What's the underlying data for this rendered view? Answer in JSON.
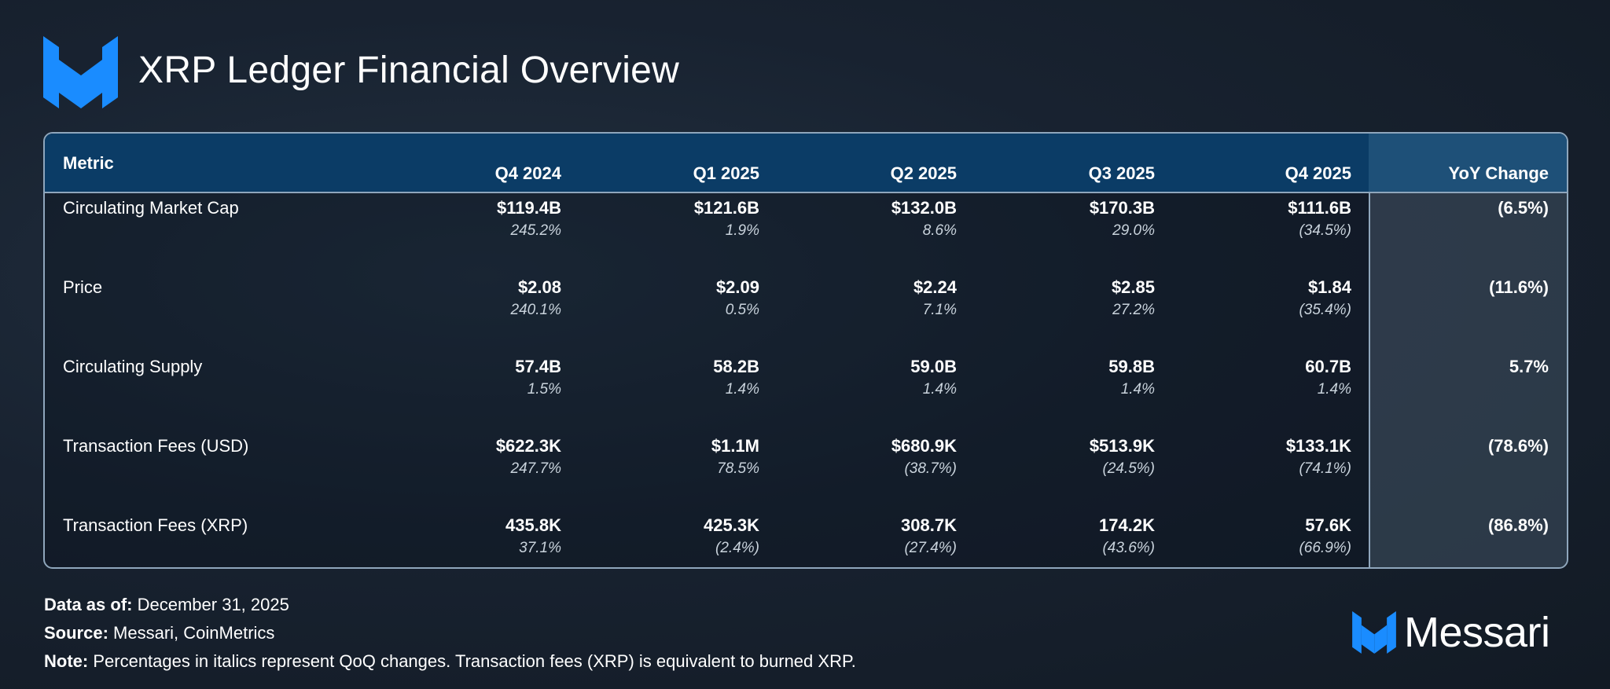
{
  "header": {
    "title": "XRP Ledger Financial Overview"
  },
  "table": {
    "columns": [
      "Metric",
      "Q4 2024",
      "Q1 2025",
      "Q2 2025",
      "Q3 2025",
      "Q4 2025",
      "YoY Change"
    ],
    "rows": [
      {
        "metric": "Circulating Market Cap",
        "cells": [
          {
            "value": "$119.4B",
            "change": "245.2%"
          },
          {
            "value": "$121.6B",
            "change": "1.9%"
          },
          {
            "value": "$132.0B",
            "change": "8.6%"
          },
          {
            "value": "$170.3B",
            "change": "29.0%"
          },
          {
            "value": "$111.6B",
            "change": "(34.5%)"
          }
        ],
        "yoy": "(6.5%)"
      },
      {
        "metric": "Price",
        "cells": [
          {
            "value": "$2.08",
            "change": "240.1%"
          },
          {
            "value": "$2.09",
            "change": "0.5%"
          },
          {
            "value": "$2.24",
            "change": "7.1%"
          },
          {
            "value": "$2.85",
            "change": "27.2%"
          },
          {
            "value": "$1.84",
            "change": "(35.4%)"
          }
        ],
        "yoy": "(11.6%)"
      },
      {
        "metric": "Circulating Supply",
        "cells": [
          {
            "value": "57.4B",
            "change": "1.5%"
          },
          {
            "value": "58.2B",
            "change": "1.4%"
          },
          {
            "value": "59.0B",
            "change": "1.4%"
          },
          {
            "value": "59.8B",
            "change": "1.4%"
          },
          {
            "value": "60.7B",
            "change": "1.4%"
          }
        ],
        "yoy": "5.7%"
      },
      {
        "metric": "Transaction Fees (USD)",
        "cells": [
          {
            "value": "$622.3K",
            "change": "247.7%"
          },
          {
            "value": "$1.1M",
            "change": "78.5%"
          },
          {
            "value": "$680.9K",
            "change": "(38.7%)"
          },
          {
            "value": "$513.9K",
            "change": "(24.5%)"
          },
          {
            "value": "$133.1K",
            "change": "(74.1%)"
          }
        ],
        "yoy": "(78.6%)"
      },
      {
        "metric": "Transaction Fees (XRP)",
        "cells": [
          {
            "value": "435.8K",
            "change": "37.1%"
          },
          {
            "value": "425.3K",
            "change": "(2.4%)"
          },
          {
            "value": "308.7K",
            "change": "(27.4%)"
          },
          {
            "value": "174.2K",
            "change": "(43.6%)"
          },
          {
            "value": "57.6K",
            "change": "(66.9%)"
          }
        ],
        "yoy": "(86.8%)"
      }
    ]
  },
  "footer": {
    "data_as_of": {
      "label": "Data as of:",
      "value": "December 31, 2025"
    },
    "source": {
      "label": "Source:",
      "value": "Messari, CoinMetrics"
    },
    "note": {
      "label": "Note:",
      "value": "Percentages in italics represent QoQ changes. Transaction fees (XRP) is equivalent to burned XRP."
    }
  },
  "brand": {
    "name": "Messari"
  }
}
